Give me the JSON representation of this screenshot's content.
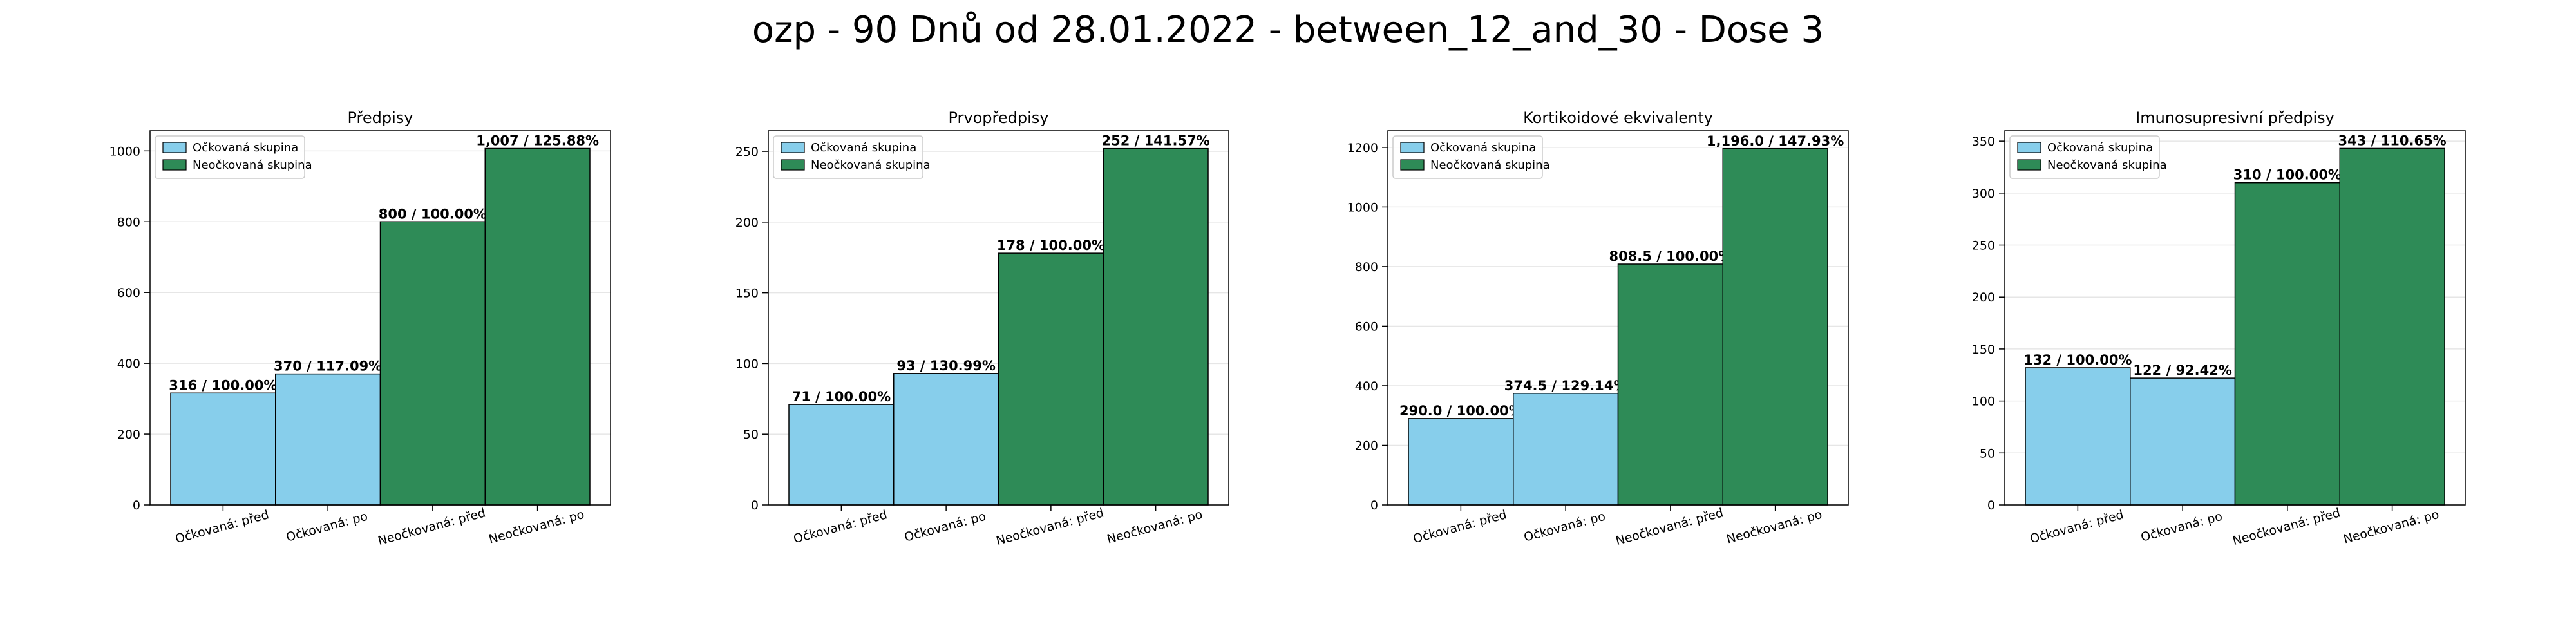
{
  "title": "ozp - 90 Dnů od 28.01.2022 - between_12_and_30 - Dose 3",
  "colors": {
    "vaccinated": "#87CEEB",
    "unvaccinated": "#2E8B57",
    "edge": "#000000",
    "grid": "#e6e6e6"
  },
  "legend": {
    "labels": [
      "Očkovaná skupina",
      "Neočkovaná skupina"
    ],
    "placement": "upper-left"
  },
  "chart_data": [
    {
      "type": "bar",
      "title": "Předpisy",
      "categories": [
        "Očkovaná: před",
        "Očkovaná: po",
        "Neočkovaná: před",
        "Neočkovaná: po"
      ],
      "values": [
        316,
        370,
        800,
        1007
      ],
      "labels": [
        "316 / 100.00%",
        "370 / 117.09%",
        "800 / 100.00%",
        "1,007 / 125.88%"
      ],
      "ylim": [
        0,
        1057
      ],
      "yticks": [
        0,
        200,
        400,
        600,
        800,
        1000
      ],
      "grid": true
    },
    {
      "type": "bar",
      "title": "Prvopředpisy",
      "categories": [
        "Očkovaná: před",
        "Očkovaná: po",
        "Neočkovaná: před",
        "Neočkovaná: po"
      ],
      "values": [
        71,
        93,
        178,
        252
      ],
      "labels": [
        "71 / 100.00%",
        "93 / 130.99%",
        "178 / 100.00%",
        "252 / 141.57%"
      ],
      "ylim": [
        0,
        264.6
      ],
      "yticks": [
        0,
        50,
        100,
        150,
        200,
        250
      ],
      "grid": true
    },
    {
      "type": "bar",
      "title": "Kortikoidové ekvivalenty",
      "categories": [
        "Očkovaná: před",
        "Očkovaná: po",
        "Neočkovaná: před",
        "Neočkovaná: po"
      ],
      "values": [
        290.0,
        374.5,
        808.5,
        1196.0
      ],
      "labels": [
        "290.0 / 100.00%",
        "374.5 / 129.14%",
        "808.5 / 100.00%",
        "1,196.0 / 147.93%"
      ],
      "ylim": [
        0,
        1256
      ],
      "yticks": [
        0,
        200,
        400,
        600,
        800,
        1000,
        1200
      ],
      "grid": true
    },
    {
      "type": "bar",
      "title": "Imunosupresivní předpisy",
      "categories": [
        "Očkovaná: před",
        "Očkovaná: po",
        "Neočkovaná: před",
        "Neočkovaná: po"
      ],
      "values": [
        132,
        122,
        310,
        343
      ],
      "labels": [
        "132 / 100.00%",
        "122 / 92.42%",
        "310 / 100.00%",
        "343 / 110.65%"
      ],
      "ylim": [
        0,
        360
      ],
      "yticks": [
        0,
        50,
        100,
        150,
        200,
        250,
        300,
        350
      ],
      "grid": true
    }
  ]
}
